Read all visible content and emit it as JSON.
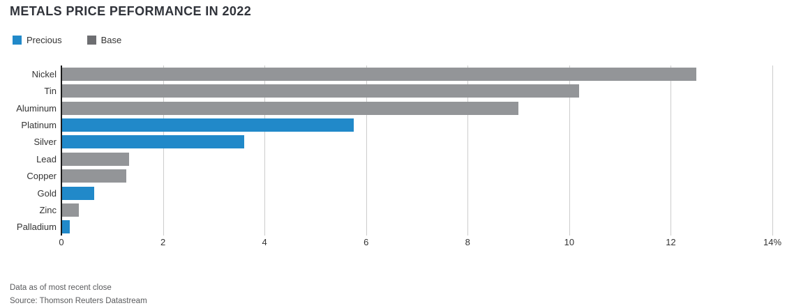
{
  "title": "METALS PRICE PEFORMANCE IN 2022",
  "legend": [
    {
      "label": "Precious",
      "color": "#2189c9"
    },
    {
      "label": "Base",
      "color": "#6d6e71"
    }
  ],
  "chart_data": {
    "type": "bar",
    "orientation": "horizontal",
    "title": "METALS PRICE PEFORMANCE IN 2022",
    "categories": [
      "Nickel",
      "Tin",
      "Aluminum",
      "Platinum",
      "Silver",
      "Lead",
      "Copper",
      "Gold",
      "Zinc",
      "Palladium"
    ],
    "values": [
      12.5,
      10.2,
      9.0,
      5.75,
      3.6,
      1.33,
      1.28,
      0.65,
      0.34,
      0.16
    ],
    "group_by_category": [
      "Base",
      "Base",
      "Base",
      "Precious",
      "Precious",
      "Base",
      "Base",
      "Precious",
      "Base",
      "Precious"
    ],
    "group_colors": {
      "Precious": "#2189c9",
      "Base": "#939598"
    },
    "xlabel": "",
    "ylabel": "",
    "xlim": [
      0,
      14
    ],
    "xticks": [
      0,
      2,
      4,
      6,
      8,
      10,
      12,
      14
    ],
    "xtick_labels": [
      "0",
      "2",
      "4",
      "6",
      "8",
      "10",
      "12",
      "14%"
    ],
    "unit": "%",
    "grid": true,
    "legend_position": "top-left"
  },
  "footer": {
    "line1": "Data as of most recent close",
    "line2": "Source: Thomson Reuters Datastream"
  }
}
